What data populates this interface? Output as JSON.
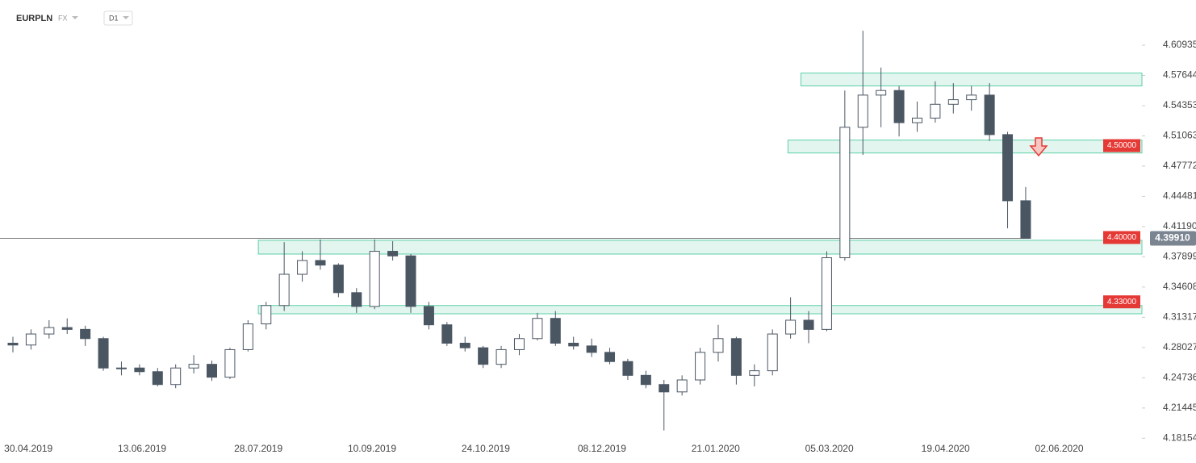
{
  "header": {
    "symbol": "EURPLN",
    "market": "FX",
    "interval": "D1"
  },
  "chart_data": {
    "type": "candlestick",
    "xlim": [
      "19.04.2019",
      "04.07.2020"
    ],
    "xticks": [
      "30.04.2019",
      "13.06.2019",
      "28.07.2019",
      "10.09.2019",
      "24.10.2019",
      "08.12.2019",
      "21.01.2020",
      "05.03.2020",
      "19.04.2020",
      "02.06.2020"
    ],
    "ylim": [
      4.1546,
      4.6585
    ],
    "yticks": [
      4.18154,
      4.21445,
      4.24736,
      4.28027,
      4.31317,
      4.34608,
      4.37899,
      {
        "value": 4.4119,
        "label": "4.41190"
      },
      4.44481,
      4.47772,
      4.51063,
      4.54353,
      4.57644,
      4.60935
    ],
    "up_color": "#ffffff",
    "down_color": "#4b5663",
    "edge_color": "#4b5663",
    "x": [
      "24.04.2019",
      "01.05.2019",
      "08.05.2019",
      "15.05.2019",
      "22.05.2019",
      "29.05.2019",
      "05.06.2019",
      "12.06.2019",
      "19.06.2019",
      "26.06.2019",
      "03.07.2019",
      "10.07.2019",
      "17.07.2019",
      "24.07.2019",
      "31.07.2019",
      "07.08.2019",
      "14.08.2019",
      "21.08.2019",
      "28.08.2019",
      "04.09.2019",
      "11.09.2019",
      "18.09.2019",
      "25.09.2019",
      "02.10.2019",
      "09.10.2019",
      "16.10.2019",
      "23.10.2019",
      "30.10.2019",
      "06.11.2019",
      "13.11.2019",
      "20.11.2019",
      "27.11.2019",
      "04.12.2019",
      "11.12.2019",
      "18.12.2019",
      "25.12.2019",
      "01.01.2020",
      "08.01.2020",
      "15.01.2020",
      "22.01.2020",
      "29.01.2020",
      "05.02.2020",
      "12.02.2020",
      "19.02.2020",
      "26.02.2020",
      "04.03.2020",
      "11.03.2020",
      "18.03.2020",
      "25.03.2020",
      "01.04.2020",
      "08.04.2020",
      "15.04.2020",
      "22.04.2020",
      "29.04.2020",
      "06.05.2020",
      "13.05.2020",
      "20.05.2020"
    ],
    "open": [
      4.285,
      4.283,
      4.295,
      4.302,
      4.3,
      4.29,
      4.258,
      4.258,
      4.254,
      4.24,
      4.258,
      4.262,
      4.248,
      4.278,
      4.306,
      4.326,
      4.36,
      4.375,
      4.37,
      4.34,
      4.325,
      4.385,
      4.38,
      4.325,
      4.305,
      4.285,
      4.28,
      4.262,
      4.278,
      4.29,
      4.312,
      4.285,
      4.282,
      4.275,
      4.265,
      4.25,
      4.24,
      4.232,
      4.245,
      4.275,
      4.29,
      4.25,
      4.255,
      4.295,
      4.31,
      4.3,
      4.378,
      4.52,
      4.555,
      4.56,
      4.525,
      4.53,
      4.545,
      4.55,
      4.555,
      4.512,
      4.44
    ],
    "high": [
      4.292,
      4.3,
      4.31,
      4.312,
      4.304,
      4.292,
      4.265,
      4.262,
      4.258,
      4.262,
      4.272,
      4.266,
      4.28,
      4.31,
      4.33,
      4.395,
      4.385,
      4.398,
      4.372,
      4.345,
      4.398,
      4.396,
      4.382,
      4.33,
      4.308,
      4.292,
      4.282,
      4.282,
      4.295,
      4.318,
      4.32,
      4.292,
      4.29,
      4.28,
      4.268,
      4.255,
      4.245,
      4.25,
      4.28,
      4.305,
      4.292,
      4.262,
      4.3,
      4.335,
      4.32,
      4.385,
      4.56,
      4.625,
      4.585,
      4.565,
      4.548,
      4.57,
      4.568,
      4.565,
      4.568,
      4.515,
      4.455
    ],
    "low": [
      4.275,
      4.278,
      4.29,
      4.295,
      4.282,
      4.255,
      4.25,
      4.25,
      4.238,
      4.236,
      4.252,
      4.244,
      4.246,
      4.276,
      4.3,
      4.32,
      4.352,
      4.365,
      4.335,
      4.318,
      4.322,
      4.375,
      4.318,
      4.3,
      4.282,
      4.276,
      4.258,
      4.258,
      4.272,
      4.288,
      4.282,
      4.278,
      4.27,
      4.262,
      4.245,
      4.236,
      4.19,
      4.228,
      4.24,
      4.265,
      4.24,
      4.238,
      4.25,
      4.29,
      4.285,
      4.298,
      4.375,
      4.49,
      4.52,
      4.51,
      4.515,
      4.525,
      4.535,
      4.538,
      4.505,
      4.41,
      4.399
    ],
    "close": [
      4.283,
      4.295,
      4.302,
      4.3,
      4.29,
      4.258,
      4.258,
      4.254,
      4.24,
      4.258,
      4.262,
      4.248,
      4.278,
      4.306,
      4.326,
      4.36,
      4.375,
      4.37,
      4.34,
      4.325,
      4.385,
      4.38,
      4.325,
      4.305,
      4.285,
      4.28,
      4.262,
      4.278,
      4.29,
      4.312,
      4.285,
      4.282,
      4.275,
      4.265,
      4.25,
      4.24,
      4.232,
      4.245,
      4.275,
      4.29,
      4.25,
      4.255,
      4.295,
      4.31,
      4.3,
      4.378,
      4.52,
      4.555,
      4.56,
      4.525,
      4.53,
      4.545,
      4.55,
      4.555,
      4.512,
      4.44,
      4.3991
    ],
    "zones": [
      {
        "from": "23.02.2020",
        "low": 4.565,
        "high": 4.579
      },
      {
        "from": "18.02.2020",
        "low": 4.492,
        "high": 4.506
      },
      {
        "from": "28.07.2019",
        "low": 4.382,
        "high": 4.397
      },
      {
        "from": "28.07.2019",
        "low": 4.317,
        "high": 4.326
      }
    ],
    "zone_color": "#5ccfa6",
    "levels": [
      {
        "value": 4.5,
        "label": "4.50000"
      },
      {
        "value": 4.4,
        "label": "4.40000"
      },
      {
        "value": 4.33,
        "label": "4.33000"
      }
    ],
    "level_color": "#e53935",
    "last_price": {
      "value": 4.3991,
      "label": "4.39910"
    },
    "last_price_color": "#7b8591"
  }
}
